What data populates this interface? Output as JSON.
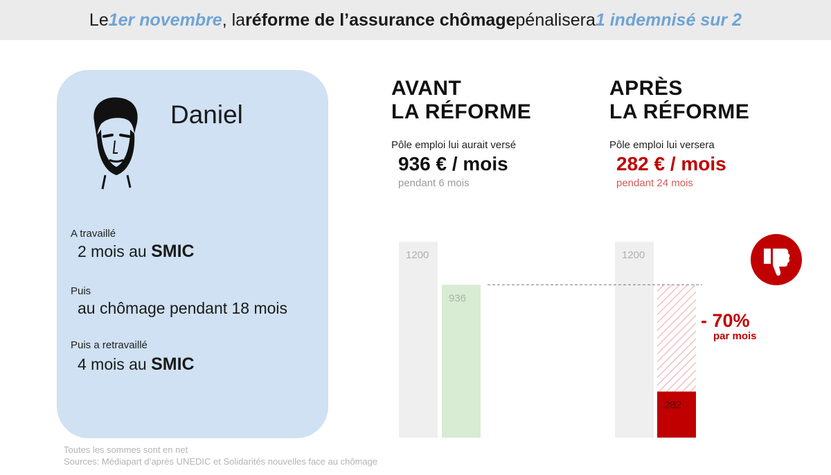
{
  "header": {
    "part1": "Le ",
    "highlight1": "1er novembre",
    "part2": ", la ",
    "bold": "réforme de l’assurance chômage",
    "part3": " pénalisera ",
    "highlight2": "1 indemnisé sur 2"
  },
  "profile": {
    "name": "Daniel",
    "label1": "A travaillé",
    "value1_prefix": "2 mois au ",
    "value1_bold": "SMIC",
    "label2": "Puis",
    "value2": "au chômage pendant 18 mois",
    "label3": "Puis a retravaillé",
    "value3_prefix": "4 mois au ",
    "value3_bold": "SMIC"
  },
  "before": {
    "title": "AVANT\nLA RÉFORME",
    "caption": "Pôle emploi lui aurait versé",
    "amount": "936 € / mois",
    "duration": "pendant 6 mois"
  },
  "after": {
    "title": "APRÈS\nLA RÉFORME",
    "caption": "Pôle emploi lui versera",
    "amount": "282 € / mois",
    "duration": "pendant 24 mois"
  },
  "change": {
    "value": "- 70%",
    "unit": "par mois"
  },
  "colors": {
    "accent_blue": "#6fa3d6",
    "card": "#cfe1f2",
    "red": "#c00000",
    "green_bar": "#d7ecd2",
    "grey_bar": "#efefef"
  },
  "icons": {
    "thumb": "thumbs-down-icon",
    "avatar": "portrait-sketch-icon"
  },
  "chart_data": [
    {
      "type": "bar",
      "title": "AVANT LA RÉFORME",
      "ylim": [
        0,
        1200
      ],
      "series": [
        {
          "name": "",
          "values": [
            1200
          ],
          "label": "1200",
          "color": "#efefef"
        },
        {
          "name": "",
          "values": [
            936
          ],
          "label": "936",
          "color": "#d7ecd2"
        }
      ]
    },
    {
      "type": "bar",
      "title": "APRÈS LA RÉFORME",
      "ylim": [
        0,
        1200
      ],
      "reference_value": 936,
      "series": [
        {
          "name": "",
          "values": [
            1200
          ],
          "label": "1200",
          "color": "#efefef"
        },
        {
          "name": "",
          "values": [
            282
          ],
          "label": "282",
          "color": "#c00000"
        }
      ]
    }
  ],
  "footer": {
    "line1": "Toutes les sommes sont en net",
    "line2": "Sources: Médiapart d’après UNEDIC et Solidarités nouvelles face au chômage"
  }
}
